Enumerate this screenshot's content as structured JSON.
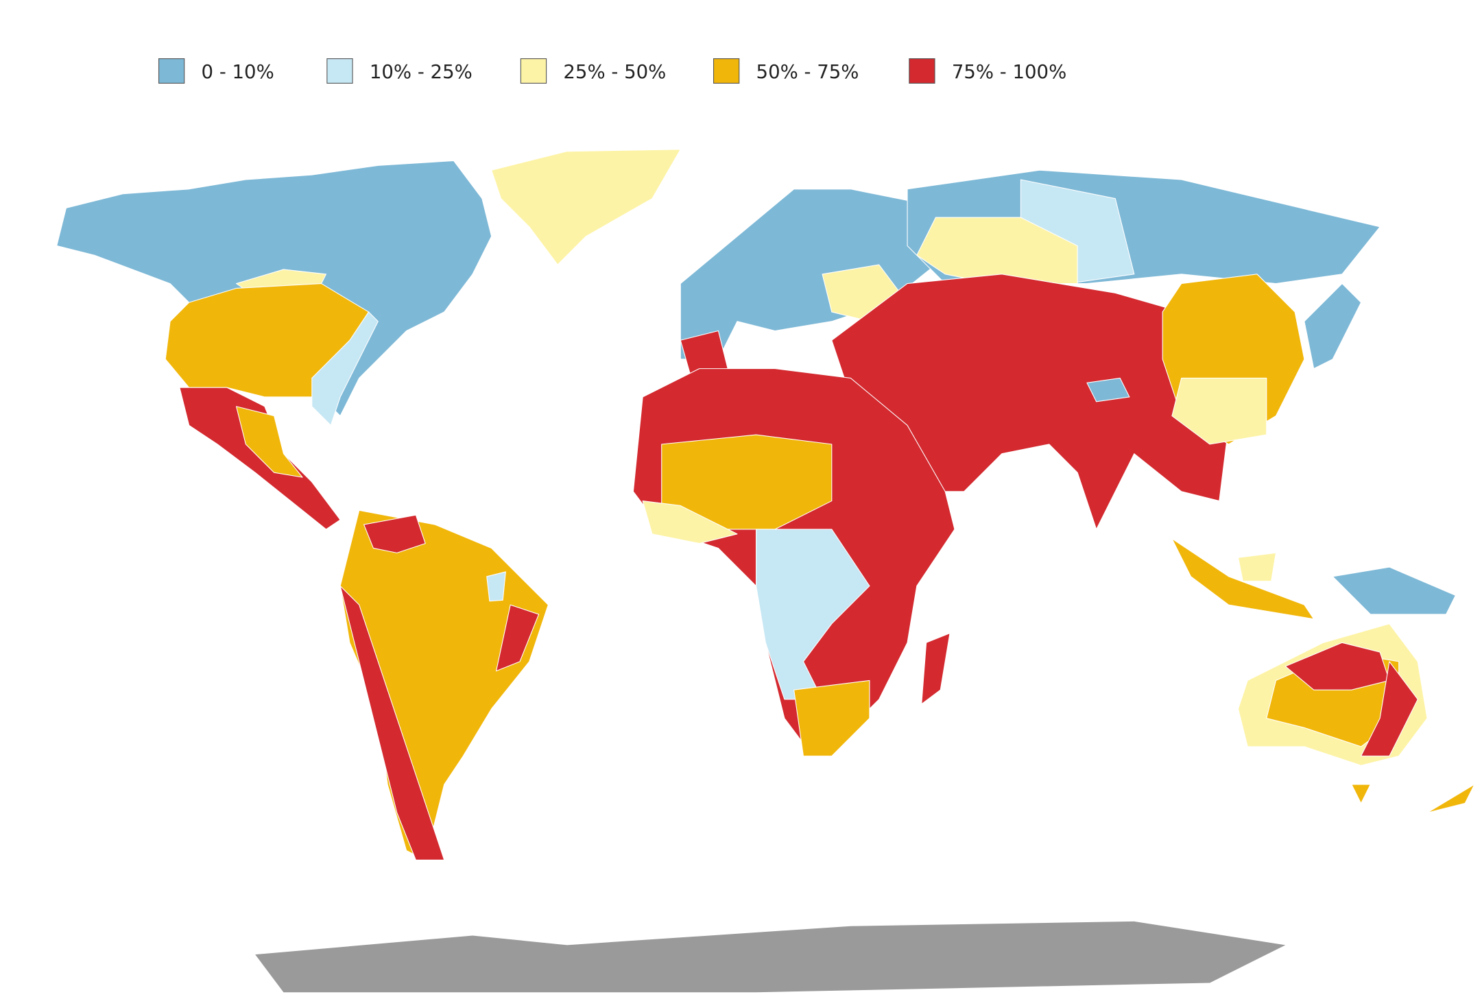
{
  "legend": {
    "items": [
      {
        "label": "0 - 10%",
        "color": "#7db8d6"
      },
      {
        "label": "10% - 25%",
        "color": "#c6e7f4"
      },
      {
        "label": "25% - 50%",
        "color": "#fdf3a6"
      },
      {
        "label": "50% - 75%",
        "color": "#f1b60a"
      },
      {
        "label": "75% - 100%",
        "color": "#d3292f"
      }
    ]
  }
}
